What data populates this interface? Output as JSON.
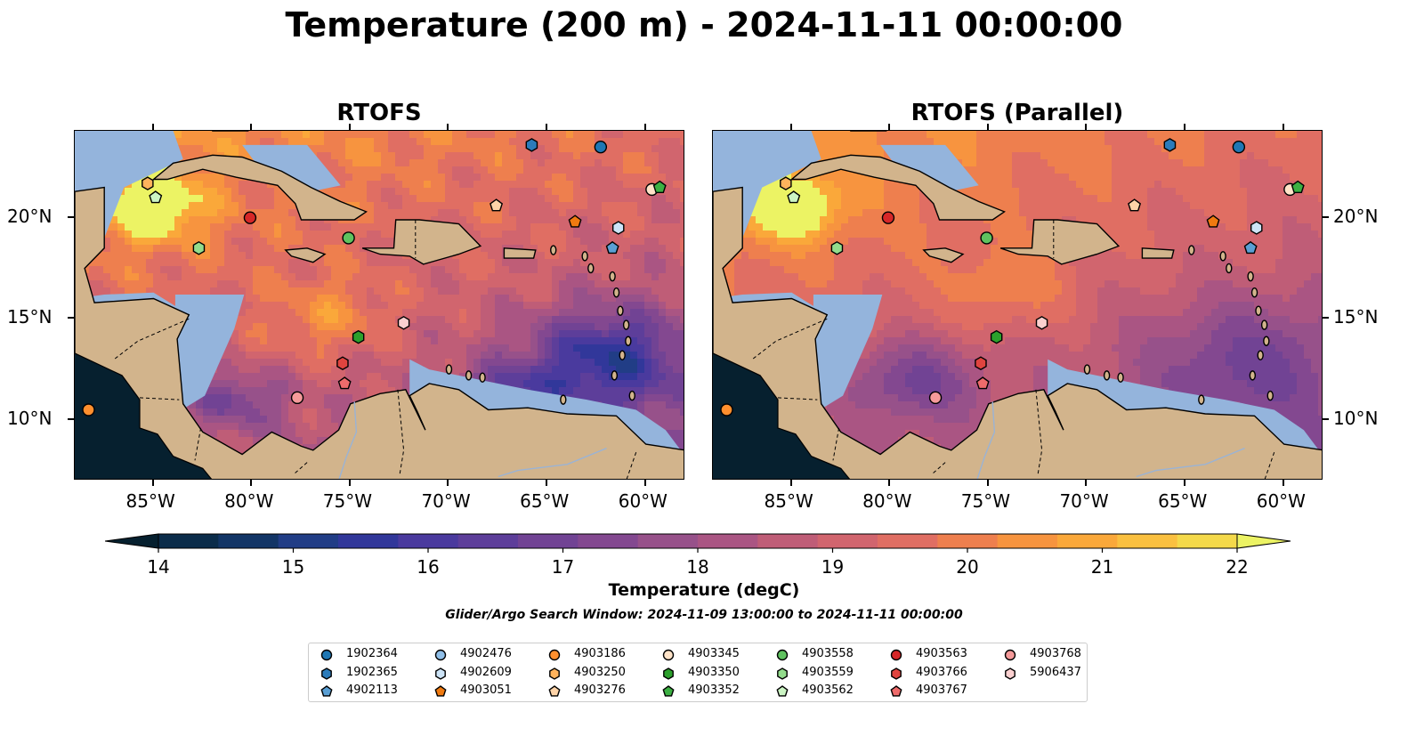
{
  "title": "Temperature (200 m) - 2024-11-11 00:00:00",
  "panels": [
    {
      "title": "RTOFS"
    },
    {
      "title": "RTOFS (Parallel)"
    }
  ],
  "axes": {
    "lon_labels": [
      "85°W",
      "80°W",
      "75°W",
      "70°W",
      "65°W",
      "60°W"
    ],
    "lat_labels": [
      "20°N",
      "15°N",
      "10°N"
    ],
    "lon_values": [
      -85,
      -80,
      -75,
      -70,
      -65,
      -60
    ],
    "lat_values": [
      20,
      15,
      10
    ],
    "lon_range": [
      -89,
      -58
    ],
    "lat_range": [
      7,
      24.3
    ]
  },
  "colorbar": {
    "label": "Temperature (degC)",
    "ticks": [
      "14",
      "15",
      "16",
      "17",
      "18",
      "19",
      "20",
      "21",
      "22"
    ],
    "range": [
      14,
      22
    ],
    "step": 0.5,
    "colors": [
      "#0b2c4a",
      "#123566",
      "#213d86",
      "#31379a",
      "#4a3a9e",
      "#5d3e9a",
      "#714394",
      "#834890",
      "#97518a",
      "#aa5583",
      "#bf5d77",
      "#d1656e",
      "#e06e63",
      "#ee7f4e",
      "#f7943f",
      "#faa83a",
      "#fac040",
      "#f4d94a"
    ],
    "under_color": "#06202f",
    "over_color": "#ecf364"
  },
  "search_window": "Glider/Argo Search Window: 2024-11-09 13:00:00 to 2024-11-11 00:00:00",
  "land_color": "#d2b48c",
  "shelf_color": "#94b4dc",
  "deep_color": "#06202f",
  "legend": [
    {
      "id": "1902364",
      "marker": "circle",
      "color": "#1f77b4"
    },
    {
      "id": "1902365",
      "marker": "hexagon",
      "color": "#2b7bba"
    },
    {
      "id": "4902113",
      "marker": "pentagon",
      "color": "#5a9fd4"
    },
    {
      "id": "4902476",
      "marker": "circle",
      "color": "#90bfe8"
    },
    {
      "id": "4902609",
      "marker": "hexagon",
      "color": "#cde4f7"
    },
    {
      "id": "4903051",
      "marker": "pentagon",
      "color": "#f07a10"
    },
    {
      "id": "4903186",
      "marker": "circle",
      "color": "#ff8f2e"
    },
    {
      "id": "4903250",
      "marker": "hexagon",
      "color": "#ffb35c"
    },
    {
      "id": "4903276",
      "marker": "pentagon",
      "color": "#ffd4a8"
    },
    {
      "id": "4903345",
      "marker": "circle",
      "color": "#ffe3c8"
    },
    {
      "id": "4903350",
      "marker": "hexagon",
      "color": "#2ca02c"
    },
    {
      "id": "4903352",
      "marker": "pentagon",
      "color": "#3cb043"
    },
    {
      "id": "4903558",
      "marker": "circle",
      "color": "#5fc25f"
    },
    {
      "id": "4903559",
      "marker": "hexagon",
      "color": "#93dc8c"
    },
    {
      "id": "4903562",
      "marker": "pentagon",
      "color": "#ccf5c4"
    },
    {
      "id": "4903563",
      "marker": "circle",
      "color": "#d62728"
    },
    {
      "id": "4903766",
      "marker": "hexagon",
      "color": "#e0443f"
    },
    {
      "id": "4903767",
      "marker": "pentagon",
      "color": "#ee6b6b"
    },
    {
      "id": "4903768",
      "marker": "circle",
      "color": "#f59a9a"
    },
    {
      "id": "5906437",
      "marker": "hexagon",
      "color": "#fbd0d0"
    }
  ],
  "floats": [
    {
      "id": "1902364",
      "lon": -62.3,
      "lat": 23.5
    },
    {
      "id": "1902365",
      "lon": -65.8,
      "lat": 23.6
    },
    {
      "id": "4902113",
      "lon": -61.7,
      "lat": 18.5
    },
    {
      "id": "4902609",
      "lon": -61.4,
      "lat": 19.5
    },
    {
      "id": "4903051",
      "lon": -63.6,
      "lat": 19.8
    },
    {
      "id": "4903186",
      "lon": -88.3,
      "lat": 10.5
    },
    {
      "id": "4903250",
      "lon": -85.3,
      "lat": 21.7
    },
    {
      "id": "4903276",
      "lon": -67.6,
      "lat": 20.6
    },
    {
      "id": "4903345",
      "lon": -59.7,
      "lat": 21.4
    },
    {
      "id": "4903350",
      "lon": -74.6,
      "lat": 14.1
    },
    {
      "id": "4903352",
      "lon": -59.3,
      "lat": 21.5
    },
    {
      "id": "4903558",
      "lon": -75.1,
      "lat": 19.0
    },
    {
      "id": "4903559",
      "lon": -82.7,
      "lat": 18.5
    },
    {
      "id": "4903562",
      "lon": -84.9,
      "lat": 21.0
    },
    {
      "id": "4903563",
      "lon": -80.1,
      "lat": 20.0
    },
    {
      "id": "4903766",
      "lon": -75.4,
      "lat": 12.8
    },
    {
      "id": "4903767",
      "lon": -75.3,
      "lat": 11.8
    },
    {
      "id": "4903768",
      "lon": -77.7,
      "lat": 11.1
    },
    {
      "id": "5906437",
      "lon": -72.3,
      "lat": 14.8
    }
  ]
}
